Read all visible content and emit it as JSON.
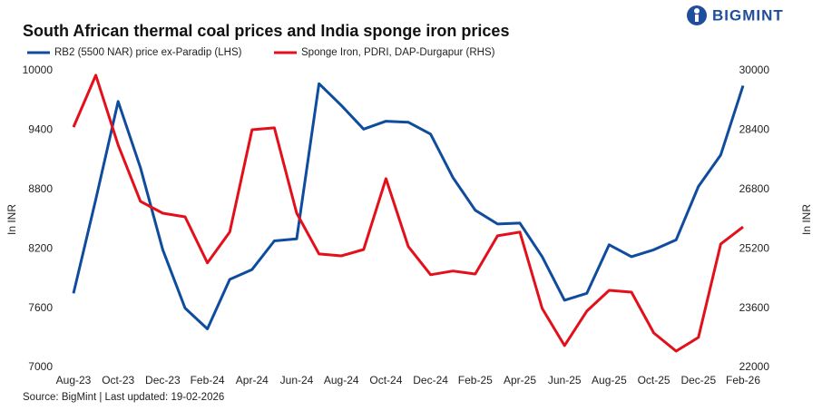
{
  "brand": "BIGMINT",
  "chart_data": {
    "type": "line",
    "title": "South African thermal coal prices and India sponge iron prices",
    "source": "Source: BigMint | Last updated: 19-02-2026",
    "ylabel": "In INR",
    "y2label": "In INR",
    "categories": [
      "Aug-23",
      null,
      "Oct-23",
      null,
      "Dec-23",
      null,
      "Feb-24",
      null,
      "Apr-24",
      null,
      "Jun-24",
      null,
      "Aug-24",
      null,
      "Oct-24",
      null,
      "Dec-24",
      null,
      "Feb-25",
      null,
      "Apr-25",
      null,
      "Jun-25",
      null,
      "Aug-25",
      null,
      "Oct-25",
      null,
      "Dec-25",
      null,
      "Feb-26"
    ],
    "ylim": [
      7000,
      10000
    ],
    "yticks": [
      7000,
      7600,
      8200,
      8800,
      9400,
      10000
    ],
    "y2lim": [
      22000,
      30000
    ],
    "y2ticks": [
      22000,
      23600,
      25200,
      26800,
      28400,
      30000
    ],
    "series": [
      {
        "name": "RB2 (5500 NAR) price ex-Paradip (LHS)",
        "color": "#0f4c9e",
        "values": [
          7750,
          8700,
          9690,
          9020,
          8190,
          7600,
          7390,
          7890,
          7990,
          8280,
          8300,
          9870,
          9650,
          9410,
          9490,
          9480,
          9360,
          8920,
          8590,
          8450,
          8460,
          8120,
          7680,
          7750,
          8240,
          8120,
          8190,
          8290,
          8830,
          9150,
          9850
        ]
      },
      {
        "name": "Sponge Iron, PDRI, DAP-Durgapur (RHS)",
        "color": "#e3101b",
        "axis": "y2",
        "values": [
          28480,
          29880,
          28000,
          26480,
          26160,
          26060,
          24820,
          25650,
          28410,
          28460,
          26160,
          25060,
          25010,
          25180,
          27090,
          25260,
          24500,
          24600,
          24520,
          25550,
          25650,
          23590,
          22590,
          23520,
          24080,
          24030,
          22930,
          22440,
          22810,
          25330,
          25790
        ]
      }
    ]
  }
}
